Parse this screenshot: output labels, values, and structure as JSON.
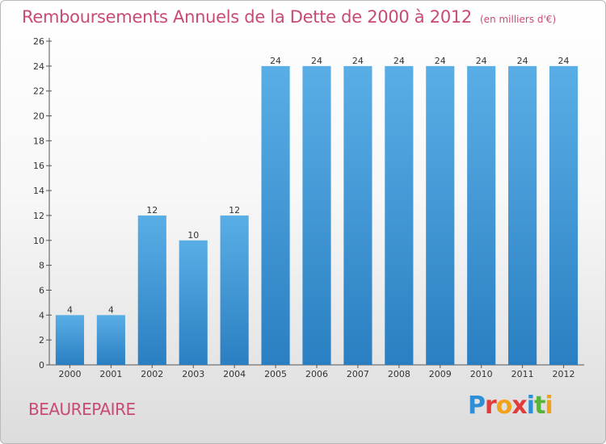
{
  "header": {
    "title": "Remboursements Annuels de la Dette de 2000 à 2012",
    "unit": "(en milliers d'€)"
  },
  "footer": {
    "town": "BEAUREPAIRE",
    "logo_letters": [
      "P",
      "r",
      "o",
      "x",
      "i",
      "t",
      "i"
    ],
    "logo_colors": [
      "#2e8ed6",
      "#e23b3b",
      "#f2a21a",
      "#e23b3b",
      "#2e8ed6",
      "#58b33a",
      "#f2a21a"
    ]
  },
  "colors": {
    "title": "#c84a76",
    "bar_top": "#5aaee6",
    "bar_bottom": "#2a7fc2",
    "text": "#333333",
    "axis": "#555555"
  },
  "chart_data": {
    "type": "bar",
    "categories": [
      "2000",
      "2001",
      "2002",
      "2003",
      "2004",
      "2005",
      "2006",
      "2007",
      "2008",
      "2009",
      "2010",
      "2011",
      "2012"
    ],
    "values": [
      4,
      4,
      12,
      10,
      12,
      24,
      24,
      24,
      24,
      24,
      24,
      24,
      24
    ],
    "title": "Remboursements Annuels de la Dette de 2000 à 2012",
    "xlabel": "",
    "ylabel": "",
    "ylim": [
      0,
      26
    ],
    "yticks": [
      0,
      2,
      4,
      6,
      8,
      10,
      12,
      14,
      16,
      18,
      20,
      22,
      24,
      26
    ],
    "grid": false,
    "data_labels": true
  }
}
